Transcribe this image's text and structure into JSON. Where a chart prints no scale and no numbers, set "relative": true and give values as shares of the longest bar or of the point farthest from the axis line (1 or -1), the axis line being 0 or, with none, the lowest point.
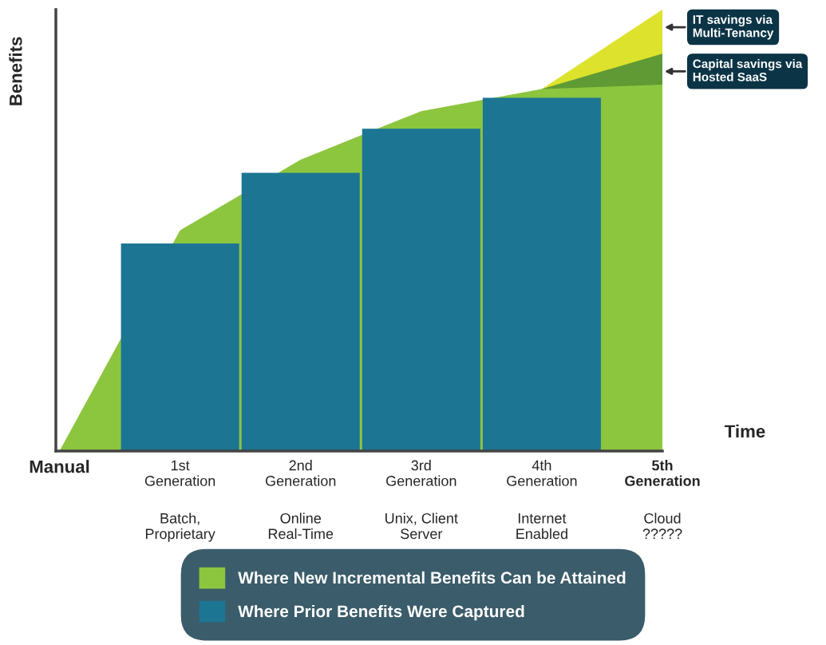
{
  "chart_data": {
    "type": "bar",
    "relative": true,
    "xlabel": "Time",
    "ylabel": "Benefits",
    "categories": [
      "Manual",
      "1st\nGeneration",
      "2nd\nGeneration",
      "3rd\nGeneration",
      "4th\nGeneration",
      "5th\nGeneration"
    ],
    "series": [
      {
        "type": "area",
        "name": "IT savings via\nMulti-Tenancy",
        "color": "#dde22d",
        "values": [
          null,
          null,
          null,
          null,
          0.82,
          1.0
        ]
      },
      {
        "type": "area",
        "name": "Capital savings via\nHosted SaaS",
        "color": "#5f9a35",
        "values": [
          null,
          null,
          null,
          null,
          0.82,
          0.9
        ]
      },
      {
        "type": "area",
        "name": "Where New Incremental Benefits Can be Attained",
        "color": "#8cc63f",
        "values": [
          0,
          0.5,
          0.66,
          0.77,
          0.82,
          0.83
        ]
      },
      {
        "name": "Where Prior Benefits Were Captured",
        "color": "#1d7594",
        "values": [
          null,
          0.47,
          0.63,
          0.73,
          0.8,
          null
        ]
      }
    ],
    "annotations": [
      "Batch,\nProprietary",
      "Online\nReal-Time",
      "Unix, Client\nServer",
      "Internet\nEnabled",
      "Cloud\n?????"
    ],
    "legend": "bottom"
  }
}
